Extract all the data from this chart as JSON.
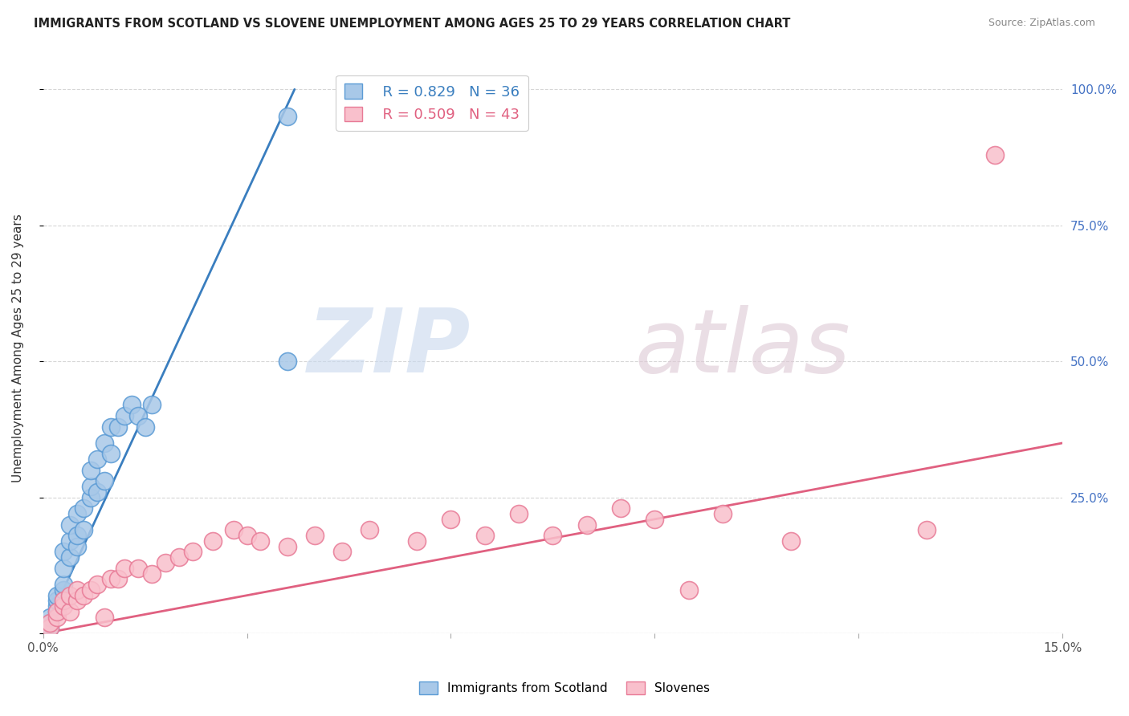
{
  "title": "IMMIGRANTS FROM SCOTLAND VS SLOVENE UNEMPLOYMENT AMONG AGES 25 TO 29 YEARS CORRELATION CHART",
  "source": "Source: ZipAtlas.com",
  "ylabel": "Unemployment Among Ages 25 to 29 years",
  "xlim": [
    0.0,
    0.15
  ],
  "ylim": [
    0.0,
    1.05
  ],
  "xticks": [
    0.0,
    0.03,
    0.06,
    0.09,
    0.12,
    0.15
  ],
  "xticklabels": [
    "0.0%",
    "",
    "",
    "",
    "",
    "15.0%"
  ],
  "yticks": [
    0.0,
    0.25,
    0.5,
    0.75,
    1.0
  ],
  "yticklabels_right": [
    "",
    "25.0%",
    "50.0%",
    "75.0%",
    "100.0%"
  ],
  "blue_color": "#a8c8e8",
  "blue_edge": "#5b9bd5",
  "pink_color": "#f9c0cc",
  "pink_edge": "#e87a96",
  "blue_line_color": "#3a7ebf",
  "pink_line_color": "#e06080",
  "legend_blue_R": "R = 0.829",
  "legend_blue_N": "N = 36",
  "legend_pink_R": "R = 0.509",
  "legend_pink_N": "N = 43",
  "background_color": "#ffffff",
  "grid_color": "#cccccc",
  "blue_scatter_x": [
    0.001,
    0.001,
    0.001,
    0.002,
    0.002,
    0.002,
    0.002,
    0.003,
    0.003,
    0.003,
    0.003,
    0.004,
    0.004,
    0.004,
    0.005,
    0.005,
    0.005,
    0.006,
    0.006,
    0.007,
    0.007,
    0.007,
    0.008,
    0.008,
    0.009,
    0.009,
    0.01,
    0.01,
    0.011,
    0.012,
    0.013,
    0.014,
    0.015,
    0.016,
    0.036,
    0.036
  ],
  "blue_scatter_y": [
    0.01,
    0.02,
    0.03,
    0.04,
    0.05,
    0.06,
    0.07,
    0.08,
    0.09,
    0.12,
    0.15,
    0.14,
    0.17,
    0.2,
    0.16,
    0.18,
    0.22,
    0.19,
    0.23,
    0.25,
    0.27,
    0.3,
    0.26,
    0.32,
    0.28,
    0.35,
    0.33,
    0.38,
    0.38,
    0.4,
    0.42,
    0.4,
    0.38,
    0.42,
    0.5,
    0.95
  ],
  "pink_scatter_x": [
    0.001,
    0.001,
    0.002,
    0.002,
    0.003,
    0.003,
    0.004,
    0.004,
    0.005,
    0.005,
    0.006,
    0.007,
    0.008,
    0.009,
    0.01,
    0.011,
    0.012,
    0.014,
    0.016,
    0.018,
    0.02,
    0.022,
    0.025,
    0.028,
    0.03,
    0.032,
    0.036,
    0.04,
    0.044,
    0.048,
    0.055,
    0.06,
    0.065,
    0.07,
    0.075,
    0.08,
    0.085,
    0.09,
    0.095,
    0.1,
    0.11,
    0.13,
    0.14
  ],
  "pink_scatter_y": [
    0.01,
    0.02,
    0.03,
    0.04,
    0.05,
    0.06,
    0.04,
    0.07,
    0.06,
    0.08,
    0.07,
    0.08,
    0.09,
    0.03,
    0.1,
    0.1,
    0.12,
    0.12,
    0.11,
    0.13,
    0.14,
    0.15,
    0.17,
    0.19,
    0.18,
    0.17,
    0.16,
    0.18,
    0.15,
    0.19,
    0.17,
    0.21,
    0.18,
    0.22,
    0.18,
    0.2,
    0.23,
    0.21,
    0.08,
    0.22,
    0.17,
    0.19,
    0.88
  ],
  "blue_line_x": [
    0.0,
    0.037
  ],
  "blue_line_y": [
    0.0,
    1.0
  ],
  "pink_line_x": [
    0.0,
    0.15
  ],
  "pink_line_y": [
    0.0,
    0.35
  ],
  "title_color": "#222222",
  "source_color": "#888888",
  "right_tick_color": "#4472c4"
}
